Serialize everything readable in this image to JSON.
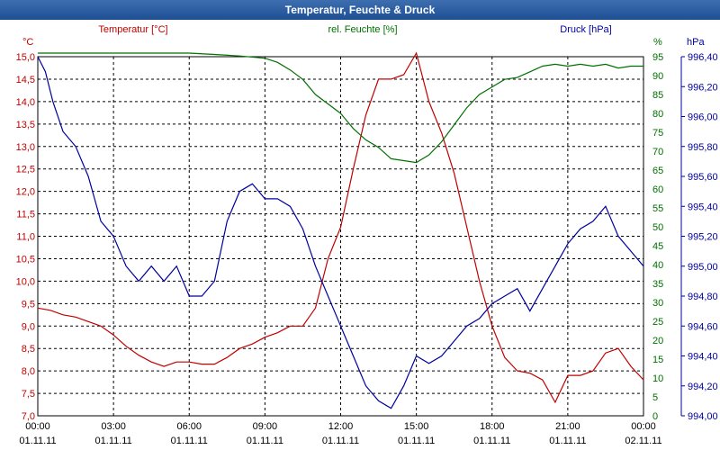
{
  "window": {
    "title": "Temperatur, Feuchte & Druck"
  },
  "colors": {
    "temperature": "#c00000",
    "humidity": "#007000",
    "pressure": "#0000a0",
    "grid": "#000000",
    "axis_text": "#000000"
  },
  "chart_data": {
    "type": "line",
    "title": "Temperatur, Feuchte & Druck",
    "legend": {
      "temperature": "Temperatur [°C]",
      "humidity": "rel. Feuchte [%]",
      "pressure": "Druck [hPa]"
    },
    "left_unit": "°C",
    "right_unit_1": "%",
    "right_unit_2": "hPa",
    "x": {
      "ticks": [
        {
          "time": "00:00",
          "date": "01.11.11"
        },
        {
          "time": "03:00",
          "date": "01.11.11"
        },
        {
          "time": "06:00",
          "date": "01.11.11"
        },
        {
          "time": "09:00",
          "date": "01.11.11"
        },
        {
          "time": "12:00",
          "date": "01.11.11"
        },
        {
          "time": "15:00",
          "date": "01.11.11"
        },
        {
          "time": "18:00",
          "date": "01.11.11"
        },
        {
          "time": "21:00",
          "date": "01.11.11"
        },
        {
          "time": "00:00",
          "date": "02.11.11"
        }
      ],
      "range_hours": [
        0,
        24
      ]
    },
    "axes": {
      "temperature": {
        "min": 7.0,
        "max": 15.0,
        "ticks": [
          "7,0",
          "7,5",
          "8,0",
          "8,5",
          "9,0",
          "9,5",
          "10,0",
          "10,5",
          "11,0",
          "11,5",
          "12,0",
          "12,5",
          "13,0",
          "13,5",
          "14,0",
          "14,5",
          "15,0"
        ]
      },
      "humidity": {
        "min": 0,
        "max": 95,
        "ticks": [
          "0",
          "5",
          "10",
          "15",
          "20",
          "25",
          "30",
          "35",
          "40",
          "45",
          "50",
          "55",
          "60",
          "65",
          "70",
          "75",
          "80",
          "85",
          "90",
          "95"
        ]
      },
      "pressure": {
        "min": 994.0,
        "max": 996.4,
        "ticks": [
          "994,00",
          "994,20",
          "994,40",
          "994,60",
          "994,80",
          "995,00",
          "995,20",
          "995,40",
          "995,60",
          "995,80",
          "996,00",
          "996,20",
          "996,40"
        ]
      }
    },
    "series": [
      {
        "name": "Temperatur [°C]",
        "key": "temperature",
        "hours": [
          0,
          0.5,
          1,
          1.5,
          2,
          2.5,
          3,
          3.5,
          4,
          4.5,
          5,
          5.5,
          6,
          6.5,
          7,
          7.5,
          8,
          8.5,
          9,
          9.5,
          10,
          10.5,
          11,
          11.5,
          12,
          12.5,
          13,
          13.5,
          14,
          14.5,
          15,
          15.5,
          16,
          16.5,
          17,
          17.5,
          18,
          18.5,
          19,
          19.5,
          20,
          20.5,
          21,
          21.5,
          22,
          22.5,
          23,
          23.5,
          24
        ],
        "values": [
          9.4,
          9.35,
          9.25,
          9.2,
          9.1,
          9.0,
          8.8,
          8.55,
          8.35,
          8.2,
          8.1,
          8.2,
          8.2,
          8.15,
          8.15,
          8.3,
          8.5,
          8.6,
          8.75,
          8.85,
          9.0,
          9.0,
          9.4,
          10.5,
          11.2,
          12.5,
          13.7,
          14.5,
          14.5,
          14.6,
          15.1,
          14.0,
          13.3,
          12.4,
          11.2,
          10.0,
          9.0,
          8.3,
          8.0,
          7.95,
          7.8,
          7.3,
          7.9,
          7.9,
          8.0,
          8.4,
          8.5,
          8.1,
          7.8
        ]
      },
      {
        "name": "rel. Feuchte [%]",
        "key": "humidity",
        "hours": [
          0,
          1,
          2,
          3,
          4,
          5,
          6,
          7,
          8,
          9,
          9.5,
          10,
          10.5,
          11,
          11.5,
          12,
          12.5,
          13,
          13.5,
          14,
          14.5,
          15,
          15.5,
          16,
          16.5,
          17,
          17.5,
          18,
          18.5,
          19,
          19.5,
          20,
          20.5,
          21,
          21.5,
          22,
          22.5,
          23,
          23.5,
          24
        ],
        "values": [
          96.5,
          96.5,
          96.4,
          96.3,
          96.2,
          96.1,
          96.0,
          95.6,
          95.2,
          94.6,
          93.5,
          91.5,
          89.0,
          85.0,
          82.5,
          80.0,
          76.0,
          73.0,
          71.0,
          68.0,
          67.5,
          67.0,
          69.0,
          72.5,
          77.0,
          81.5,
          85.0,
          87.0,
          89.0,
          89.5,
          91.0,
          92.5,
          93.0,
          92.5,
          93.0,
          92.5,
          93.0,
          92.0,
          92.5,
          92.5
        ]
      },
      {
        "name": "Druck [hPa]",
        "key": "pressure",
        "hours": [
          0,
          0.3,
          0.6,
          1,
          1.5,
          2,
          2.5,
          3,
          3.5,
          4,
          4.5,
          5,
          5.5,
          6,
          6.5,
          7,
          7.5,
          8,
          8.5,
          9,
          9.5,
          10,
          10.5,
          11,
          11.5,
          12,
          12.5,
          13,
          13.5,
          14,
          14.5,
          15,
          15.5,
          16,
          16.5,
          17,
          17.5,
          18,
          18.5,
          19,
          19.5,
          20,
          20.5,
          21,
          21.5,
          22,
          22.5,
          23,
          23.5,
          24
        ],
        "values": [
          996.4,
          996.3,
          996.1,
          995.9,
          995.8,
          995.6,
          995.3,
          995.2,
          995.0,
          994.9,
          995.0,
          994.9,
          995.0,
          994.8,
          994.8,
          994.9,
          995.3,
          995.5,
          995.55,
          995.45,
          995.45,
          995.4,
          995.25,
          995.0,
          994.8,
          994.6,
          994.4,
          994.2,
          994.1,
          994.05,
          994.2,
          994.4,
          994.35,
          994.4,
          994.5,
          994.6,
          994.65,
          994.75,
          994.8,
          994.85,
          994.7,
          994.85,
          995.0,
          995.15,
          995.25,
          995.3,
          995.4,
          995.2,
          995.1,
          995.0
        ]
      }
    ]
  }
}
